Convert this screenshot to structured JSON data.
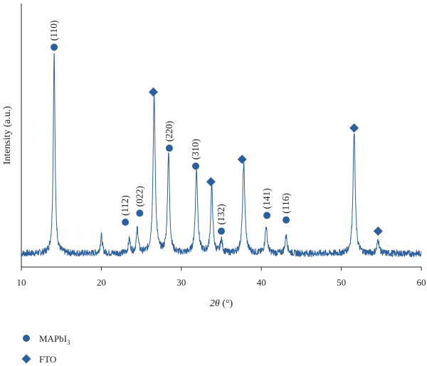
{
  "chart_data": {
    "type": "line",
    "xlabel_var": "2θ",
    "xlabel_unit": " (°)",
    "ylabel": "Intensity (a.u.)",
    "xlim": [
      10,
      60
    ],
    "xticks": [
      10,
      20,
      30,
      40,
      50,
      60
    ],
    "grid": false,
    "legend_position": "bottom-left",
    "series_color": "#2c5f9e",
    "marker_color": "#2c5f9e",
    "baseline": 0.06,
    "peaks": [
      {
        "x": 14.1,
        "h": 0.9,
        "w": 0.13
      },
      {
        "x": 20.0,
        "h": 0.08,
        "w": 0.14
      },
      {
        "x": 23.5,
        "h": 0.06,
        "w": 0.15
      },
      {
        "x": 24.5,
        "h": 0.11,
        "w": 0.14
      },
      {
        "x": 26.6,
        "h": 0.7,
        "w": 0.16
      },
      {
        "x": 28.4,
        "h": 0.45,
        "w": 0.15
      },
      {
        "x": 31.9,
        "h": 0.37,
        "w": 0.17
      },
      {
        "x": 33.8,
        "h": 0.3,
        "w": 0.15
      },
      {
        "x": 35.0,
        "h": 0.06,
        "w": 0.15
      },
      {
        "x": 37.8,
        "h": 0.4,
        "w": 0.17
      },
      {
        "x": 40.6,
        "h": 0.12,
        "w": 0.16
      },
      {
        "x": 43.1,
        "h": 0.08,
        "w": 0.16
      },
      {
        "x": 51.6,
        "h": 0.55,
        "w": 0.16
      },
      {
        "x": 54.6,
        "h": 0.06,
        "w": 0.16
      }
    ],
    "annotations": [
      {
        "x": 14.1,
        "y": 0.98,
        "marker": "circle",
        "label": "(110)",
        "rotate": true
      },
      {
        "x": 23.0,
        "y": 0.2,
        "marker": "circle",
        "label": "(112)",
        "rotate": true
      },
      {
        "x": 24.8,
        "y": 0.24,
        "marker": "circle",
        "label": "(022)",
        "rotate": true
      },
      {
        "x": 26.5,
        "y": 0.78,
        "marker": "diamond",
        "label": "",
        "rotate": false
      },
      {
        "x": 28.5,
        "y": 0.53,
        "marker": "circle",
        "label": "(220)",
        "rotate": true
      },
      {
        "x": 31.8,
        "y": 0.45,
        "marker": "circle",
        "label": "(310)",
        "rotate": true
      },
      {
        "x": 33.7,
        "y": 0.38,
        "marker": "diamond",
        "label": "",
        "rotate": false
      },
      {
        "x": 35.0,
        "y": 0.16,
        "marker": "circle",
        "label": "(132)",
        "rotate": true
      },
      {
        "x": 37.6,
        "y": 0.48,
        "marker": "diamond",
        "label": "",
        "rotate": false
      },
      {
        "x": 40.7,
        "y": 0.23,
        "marker": "circle",
        "label": "(141)",
        "rotate": true
      },
      {
        "x": 43.1,
        "y": 0.21,
        "marker": "circle",
        "label": "(116)",
        "rotate": true
      },
      {
        "x": 51.6,
        "y": 0.62,
        "marker": "diamond",
        "label": "",
        "rotate": false
      },
      {
        "x": 54.6,
        "y": 0.16,
        "marker": "diamond",
        "label": "",
        "rotate": false
      }
    ],
    "legend": [
      {
        "marker": "circle",
        "label": "MAPbI",
        "sub": "3"
      },
      {
        "marker": "diamond",
        "label": "FTO",
        "sub": ""
      }
    ]
  }
}
